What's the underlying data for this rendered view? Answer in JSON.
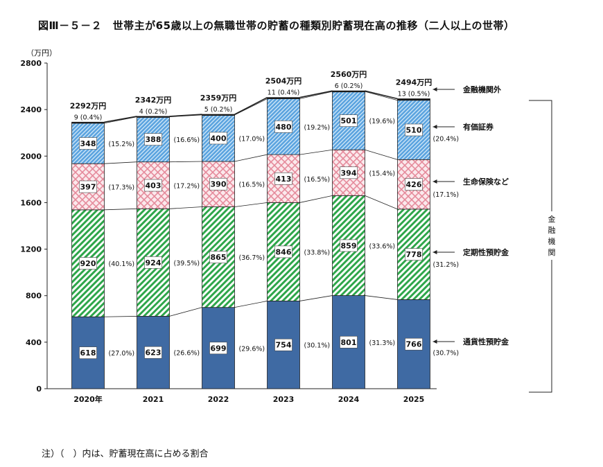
{
  "title": "図Ⅲ－５－２　世帯主が65歳以上の無職世帯の貯蓄の種類別貯蓄現在高の推移（二人以上の世帯）",
  "footnote": "注）（　）内は、貯蓄現在高に占める割合",
  "chart_data": {
    "type": "bar",
    "stacked": true,
    "ylabel": "（万円）",
    "ylim": [
      0,
      2800
    ],
    "yticks": [
      0,
      400,
      800,
      1200,
      1600,
      2000,
      2400,
      2800
    ],
    "categories": [
      "2020年",
      "2021",
      "2022",
      "2023",
      "2024",
      "2025"
    ],
    "totals": [
      "2292万円",
      "2342万円",
      "2359万円",
      "2504万円",
      "2560万円",
      "2494万円"
    ],
    "series": [
      {
        "name": "通貨性預貯金",
        "color": "#3f6aa3",
        "pattern": "solid",
        "values": [
          618,
          623,
          699,
          754,
          801,
          766
        ],
        "shares": [
          "(27.0%)",
          "(26.6%)",
          "(29.6%)",
          "(30.1%)",
          "(31.3%)",
          "(30.7%)"
        ]
      },
      {
        "name": "定期性預貯金",
        "color": "#2ea64a",
        "pattern": "diagonal",
        "values": [
          920,
          924,
          865,
          846,
          859,
          778
        ],
        "shares": [
          "(40.1%)",
          "(39.5%)",
          "(36.7%)",
          "(33.8%)",
          "(33.6%)",
          "(31.2%)"
        ]
      },
      {
        "name": "生命保険など",
        "color": "#e79aa8",
        "pattern": "crosshatch",
        "values": [
          397,
          403,
          390,
          413,
          394,
          426
        ],
        "shares": [
          "(17.3%)",
          "(17.2%)",
          "(16.5%)",
          "(16.5%)",
          "(15.4%)",
          "(17.1%)"
        ]
      },
      {
        "name": "有価証券",
        "color": "#4a95d4",
        "pattern": "dots",
        "values": [
          348,
          388,
          400,
          480,
          501,
          510
        ],
        "shares": [
          "(15.2%)",
          "(16.6%)",
          "(17.0%)",
          "(19.2%)",
          "(19.6%)",
          "(20.4%)"
        ]
      },
      {
        "name": "金融機関外",
        "color": "#111111",
        "pattern": "solid",
        "values": [
          9,
          4,
          5,
          11,
          6,
          13
        ],
        "shares": [
          "(0.4%)",
          "(0.2%)",
          "(0.2%)",
          "(0.4%)",
          "(0.2%)",
          "(0.5%)"
        ]
      }
    ],
    "bracket_label": "金融機関"
  }
}
